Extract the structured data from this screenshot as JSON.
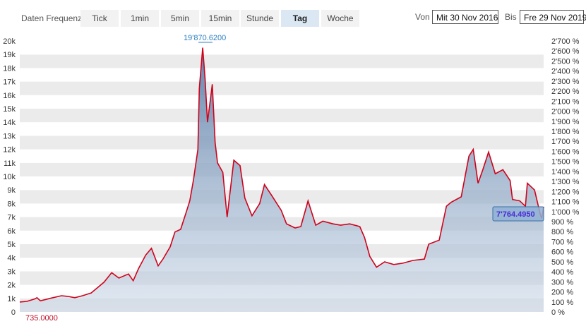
{
  "toolbar": {
    "frequency_label": "Daten Frequenz",
    "tabs": [
      "Tick",
      "1min",
      "5min",
      "15min",
      "Stunde",
      "Tag",
      "Woche"
    ],
    "active_tab": "Tag",
    "from_label": "Von",
    "from_value": "Mit 30 Nov 2016",
    "to_label": "Bis",
    "to_value": "Fre 29 Nov 2019"
  },
  "chart_data": {
    "type": "area",
    "x_range": [
      "2016-11-30",
      "2019-11-29"
    ],
    "ylim": [
      0,
      20000
    ],
    "y_ticks": [
      "0",
      "1k",
      "2k",
      "3k",
      "4k",
      "5k",
      "6k",
      "7k",
      "8k",
      "9k",
      "10k",
      "11k",
      "12k",
      "13k",
      "14k",
      "15k",
      "16k",
      "17k",
      "18k",
      "19k",
      "20k"
    ],
    "y2_ticks": [
      "0 %",
      "100 %",
      "200 %",
      "300 %",
      "400 %",
      "500 %",
      "600 %",
      "700 %",
      "800 %",
      "900 %",
      "1'000 %",
      "1'100 %",
      "1'200 %",
      "1'300 %",
      "1'400 %",
      "1'500 %",
      "1'600 %",
      "1'700 %",
      "1'800 %",
      "1'900 %",
      "2'000 %",
      "2'100 %",
      "2'200 %",
      "2'300 %",
      "2'400 %",
      "2'500 %",
      "2'600 %",
      "2'700 %"
    ],
    "y2lim": [
      0,
      2700
    ],
    "grid": true,
    "line_color": "#d0021b",
    "area_color": "#7d9cc0",
    "annotations": {
      "max_label": "19'870.6200",
      "min_label": "735.0000",
      "last_label": "7'764.4950"
    },
    "x": [
      "2016-11-30",
      "2016-12-15",
      "2016-12-31",
      "2017-01-05",
      "2017-01-12",
      "2017-02-01",
      "2017-02-25",
      "2017-03-10",
      "2017-03-25",
      "2017-04-10",
      "2017-04-28",
      "2017-05-15",
      "2017-05-25",
      "2017-06-10",
      "2017-06-25",
      "2017-07-15",
      "2017-07-25",
      "2017-08-05",
      "2017-08-20",
      "2017-09-01",
      "2017-09-15",
      "2017-09-25",
      "2017-10-10",
      "2017-10-20",
      "2017-11-01",
      "2017-11-12",
      "2017-11-20",
      "2017-11-28",
      "2017-12-07",
      "2017-12-10",
      "2017-12-17",
      "2017-12-22",
      "2017-12-27",
      "2018-01-06",
      "2018-01-12",
      "2018-01-17",
      "2018-01-28",
      "2018-02-06",
      "2018-02-20",
      "2018-03-05",
      "2018-03-15",
      "2018-03-30",
      "2018-04-15",
      "2018-04-25",
      "2018-05-10",
      "2018-05-30",
      "2018-06-10",
      "2018-06-28",
      "2018-07-10",
      "2018-07-25",
      "2018-08-10",
      "2018-08-25",
      "2018-09-15",
      "2018-10-01",
      "2018-10-20",
      "2018-11-10",
      "2018-11-20",
      "2018-12-01",
      "2018-12-15",
      "2019-01-01",
      "2019-01-20",
      "2019-02-08",
      "2019-03-01",
      "2019-03-25",
      "2019-04-03",
      "2019-04-25",
      "2019-05-10",
      "2019-05-20",
      "2019-06-10",
      "2019-06-26",
      "2019-07-05",
      "2019-07-15",
      "2019-07-25",
      "2019-08-06",
      "2019-08-20",
      "2019-09-05",
      "2019-09-20",
      "2019-09-25",
      "2019-10-10",
      "2019-10-22",
      "2019-10-26",
      "2019-11-10",
      "2019-11-22",
      "2019-11-25",
      "2019-11-29"
    ],
    "y": [
      735,
      780,
      960,
      1050,
      820,
      1000,
      1200,
      1150,
      1050,
      1200,
      1400,
      1900,
      2200,
      2900,
      2500,
      2800,
      2300,
      3200,
      4200,
      4700,
      3400,
      3900,
      4800,
      5900,
      6100,
      7300,
      8200,
      9800,
      12000,
      16500,
      19500,
      17200,
      14000,
      16800,
      12500,
      11000,
      10300,
      7000,
      11200,
      10800,
      8400,
      7100,
      8000,
      9400,
      8600,
      7500,
      6500,
      6200,
      6300,
      8200,
      6400,
      6700,
      6500,
      6400,
      6500,
      6300,
      5500,
      4100,
      3300,
      3700,
      3500,
      3600,
      3800,
      3900,
      5000,
      5300,
      7800,
      8100,
      8500,
      11500,
      12000,
      9500,
      10500,
      11800,
      10200,
      10500,
      9700,
      8300,
      8200,
      7800,
      9500,
      9000,
      7200,
      6900,
      7764
    ]
  }
}
